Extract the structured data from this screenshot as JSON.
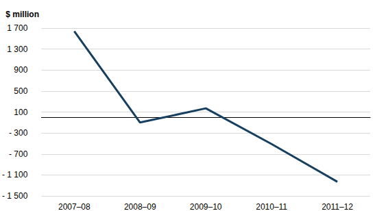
{
  "chart_data": {
    "type": "line",
    "y_label": "$ million",
    "categories": [
      "2007–08",
      "2008–09",
      "2009–10",
      "2010–11",
      "2011–12"
    ],
    "values": [
      1640,
      -100,
      170,
      -510,
      -1230
    ],
    "color": "#173f5f",
    "ylim": [
      -1500,
      1700
    ],
    "yticks": [
      {
        "value": -1500,
        "label": "- 1 500"
      },
      {
        "value": -1100,
        "label": "- 1 100"
      },
      {
        "value": -700,
        "label": "- 700"
      },
      {
        "value": -300,
        "label": "- 300"
      },
      100,
      500,
      900,
      {
        "value": 1300,
        "label": "1 300"
      },
      {
        "value": 1700,
        "label": "1 700"
      }
    ],
    "grid": true
  }
}
